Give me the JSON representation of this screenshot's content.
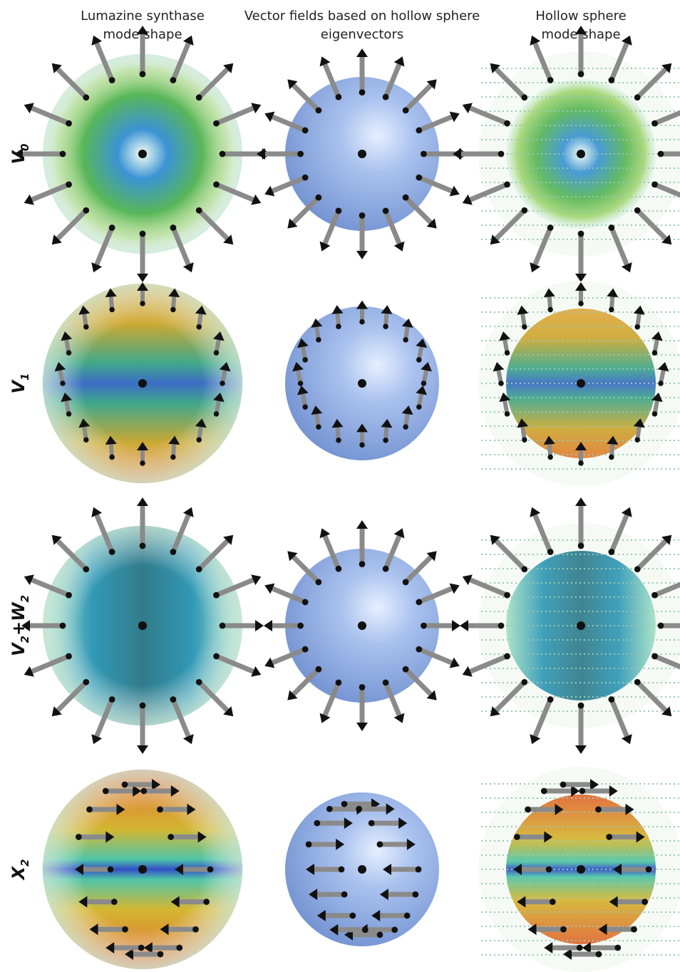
{
  "column_headers": [
    [
      "Lumazine synthase",
      "mode shape"
    ],
    [
      "Vector fields based on hollow sphere",
      "eigenvectors"
    ],
    [
      "Hollow sphere",
      "mode shape"
    ]
  ],
  "row_labels": [
    [
      [
        "V",
        "0"
      ]
    ],
    [
      [
        "V",
        "1"
      ]
    ],
    [
      [
        "V",
        "2"
      ],
      [
        "+W",
        "2"
      ]
    ],
    [
      [
        "X",
        "2"
      ]
    ]
  ]
}
